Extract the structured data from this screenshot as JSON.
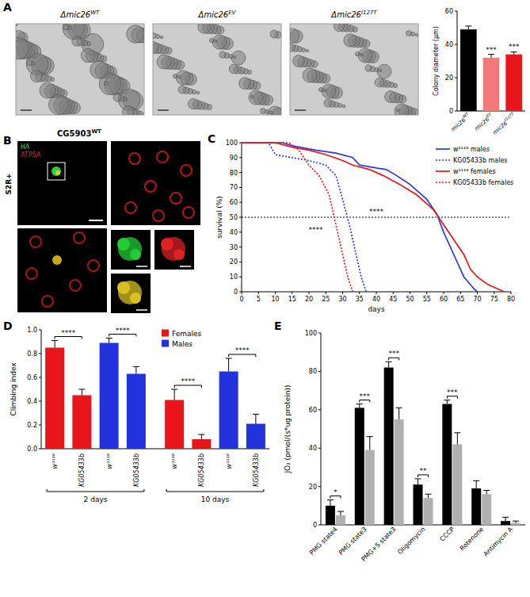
{
  "panel_labels": [
    "A",
    "B",
    "C",
    "D",
    "E"
  ],
  "panel_a_images": [
    {
      "text": "Δmic26",
      "sup": "WT"
    },
    {
      "text": "Δmic26",
      "sup": "EV"
    },
    {
      "text": "Δmic26",
      "sup": "I127T"
    }
  ],
  "panel_b": {
    "title": {
      "text": "CG5903",
      "sup": "WT"
    },
    "cell_line": "S2R+",
    "channels": [
      {
        "text": "HA",
        "color": "#33dd33"
      },
      {
        "text": "ATP5A",
        "color": "#ee2222"
      }
    ]
  },
  "chart_data": [
    {
      "type": "bar",
      "y_label": "Colony diameter (μm)",
      "categories": [
        "mic26",
        "mic26",
        "mic26"
      ],
      "category_superscripts": [
        "WT",
        "EV",
        "I127T"
      ],
      "values": [
        49,
        32,
        34
      ],
      "errors": [
        2,
        2,
        1.5
      ],
      "colors": [
        "#000000",
        "#f47a7a",
        "#e8161b"
      ],
      "ylim": [
        0,
        60
      ],
      "yticks": [
        0,
        20,
        40,
        60
      ],
      "annotations": [
        {
          "text": "***",
          "category": 1
        },
        {
          "text": "***",
          "category": 2
        }
      ]
    },
    {
      "type": "line",
      "x_label": "days",
      "y_label": "survival (%)",
      "xlim": [
        0,
        80
      ],
      "xticks": [
        0,
        5,
        10,
        15,
        20,
        25,
        30,
        35,
        40,
        45,
        50,
        55,
        60,
        65,
        70,
        75,
        80
      ],
      "ylim": [
        0,
        100
      ],
      "yticks": [
        0,
        10,
        20,
        30,
        40,
        50,
        60,
        70,
        80,
        90,
        100
      ],
      "reference_line": 50,
      "legend": "upper right",
      "series": [
        {
          "name": "w¹¹¹⁸ males",
          "color": "#2a3bd9",
          "line_style": "solid",
          "x": [
            0,
            12,
            15,
            22,
            28,
            33,
            35,
            40,
            43,
            46,
            50,
            55,
            58,
            60,
            63,
            66,
            69,
            70
          ],
          "values": [
            100,
            100,
            98,
            95,
            93,
            90,
            85,
            83,
            82,
            78,
            72,
            62,
            52,
            40,
            25,
            10,
            2,
            0
          ]
        },
        {
          "name": "KG05433b males",
          "color": "#2a3bd9",
          "line_style": "dotted",
          "x": [
            0,
            8,
            10,
            15,
            20,
            25,
            28,
            30,
            32,
            34,
            35.5,
            37
          ],
          "values": [
            100,
            100,
            92,
            90,
            88,
            85,
            78,
            62,
            45,
            25,
            10,
            0
          ]
        },
        {
          "name": "w¹¹¹⁸ females",
          "color": "#e8161b",
          "line_style": "solid",
          "x": [
            0,
            10,
            15,
            20,
            25,
            30,
            33,
            38,
            42,
            47,
            52,
            57,
            60,
            63,
            66,
            68,
            70,
            73,
            76,
            78
          ],
          "values": [
            100,
            100,
            97,
            95,
            92,
            88,
            85,
            82,
            78,
            72,
            65,
            55,
            45,
            35,
            25,
            15,
            10,
            5,
            2,
            0
          ]
        },
        {
          "name": "KG05433b females",
          "color": "#e8161b",
          "line_style": "dotted",
          "x": [
            0,
            14,
            17,
            20,
            23,
            26,
            28,
            30,
            31.5,
            33
          ],
          "values": [
            100,
            100,
            95,
            85,
            78,
            65,
            45,
            25,
            10,
            0
          ]
        }
      ],
      "annotations": [
        {
          "text": "****",
          "x": 40,
          "y": 52
        },
        {
          "text": "****",
          "x": 22,
          "y": 40
        }
      ]
    },
    {
      "type": "bar",
      "y_label": "Climbing index",
      "categories": [
        "w¹¹¹⁸",
        "KG05433b",
        "w¹¹¹⁸",
        "KG05433b",
        "w¹¹¹⁸",
        "KG05433b",
        "w¹¹¹⁸",
        "KG05433b"
      ],
      "series": [
        {
          "name": "Females",
          "color": "#e8161b",
          "values": [
            0.85,
            0.45,
            null,
            null,
            0.41,
            0.08,
            null,
            null
          ],
          "errors": [
            0.06,
            0.05,
            null,
            null,
            0.09,
            0.04,
            null,
            null
          ]
        },
        {
          "name": "Males",
          "color": "#2233dd",
          "values": [
            null,
            null,
            0.89,
            0.63,
            null,
            null,
            0.65,
            0.21
          ],
          "errors": [
            null,
            null,
            0.04,
            0.06,
            null,
            null,
            0.11,
            0.08
          ]
        }
      ],
      "ylim": [
        0,
        1
      ],
      "yticks": [
        {
          "value": 0,
          "label": "0.0"
        },
        {
          "value": 0.2,
          "label": "0.2"
        },
        {
          "value": 0.4,
          "label": "0.4"
        },
        {
          "value": 0.6,
          "label": "0.6"
        },
        {
          "value": 0.8,
          "label": "0.8"
        },
        {
          "value": 1,
          "label": "1.0"
        }
      ],
      "legend": "upper center",
      "groups": [
        {
          "label": "2 days",
          "members": [
            0,
            1,
            2,
            3
          ]
        },
        {
          "label": "10 days",
          "members": [
            4,
            5,
            6,
            7
          ]
        }
      ],
      "annotations": [
        {
          "text": "****",
          "categories": [
            0,
            1
          ]
        },
        {
          "text": "****",
          "categories": [
            2,
            3
          ]
        },
        {
          "text": "****",
          "categories": [
            4,
            5
          ]
        },
        {
          "text": "****",
          "categories": [
            6,
            7
          ]
        }
      ]
    },
    {
      "type": "bar",
      "y_label": "JO₂ (pmol/(s*ug protein))",
      "categories": [
        "PMG state4",
        "PMG state3",
        "PMG+S state3",
        "Oligomycin",
        "CCCP",
        "Rotenone",
        "Antimycin A"
      ],
      "series": [
        {
          "color": "#000000",
          "values": [
            10,
            61,
            82,
            21,
            63,
            19,
            2
          ],
          "errors": [
            3,
            2,
            3,
            3,
            2,
            4,
            2
          ]
        },
        {
          "color": "#b0b0b0",
          "values": [
            5,
            39,
            55,
            14,
            42,
            16,
            1
          ],
          "errors": [
            2,
            7,
            6,
            2,
            6,
            2,
            1
          ]
        }
      ],
      "ylim": [
        0,
        100
      ],
      "yticks": [
        0,
        20,
        40,
        60,
        80,
        100
      ],
      "annotations": [
        {
          "text": "*",
          "category": 0
        },
        {
          "text": "***",
          "category": 1
        },
        {
          "text": "***",
          "category": 2
        },
        {
          "text": "**",
          "category": 3
        },
        {
          "text": "***",
          "category": 4
        }
      ]
    }
  ]
}
